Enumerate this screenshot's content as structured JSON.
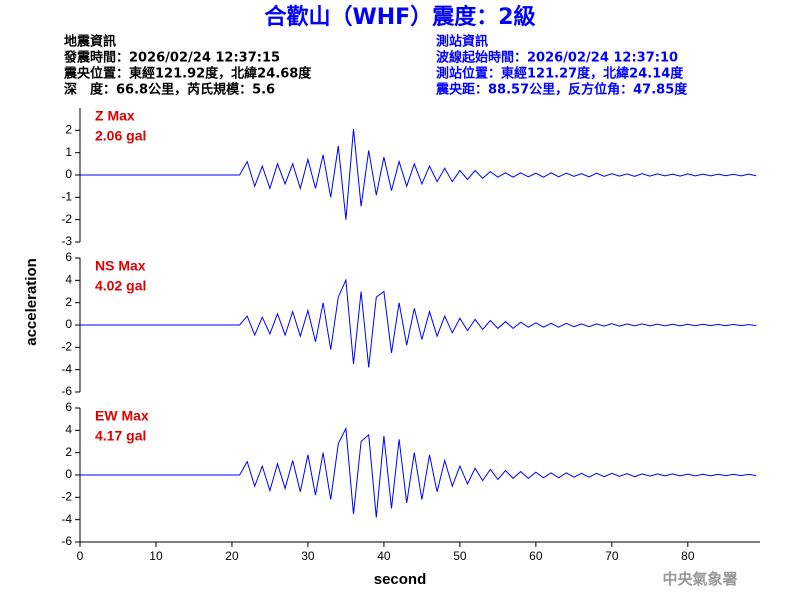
{
  "title": "合歡山（WHF）震度：2級",
  "event_info": [
    "地震資訊",
    "發震時間：2026/02/24 12:37:15",
    "震央位置：東經121.92度，北緯24.68度",
    "深　度：66.8公里，芮氏規模：5.6"
  ],
  "station_info": [
    "測站資訊",
    "波線起始時間：2026/02/24 12:37:10",
    "測站位置：東經121.27度，北緯24.14度",
    "震央距：88.57公里，反方位角：47.85度"
  ],
  "ylabel": "acceleration",
  "xlabel": "second",
  "footer": "中央氣象署",
  "chart_data": [
    {
      "type": "line",
      "color": "#0000ff",
      "annotations": [
        "Z Max",
        "2.06 gal"
      ],
      "xlim": [
        0,
        89.5
      ],
      "ylim": [
        -3,
        3
      ],
      "yticks": [
        -3,
        -2,
        -1,
        0,
        1,
        2
      ],
      "x": [
        0,
        21,
        22,
        23,
        24,
        25,
        26,
        27,
        28,
        29,
        30,
        31,
        32,
        33,
        34,
        35,
        36,
        37,
        38,
        39,
        40,
        41,
        42,
        43,
        44,
        45,
        46,
        47,
        48,
        49,
        50,
        51,
        52,
        53,
        54,
        55,
        56,
        57,
        58,
        59,
        60,
        61,
        62,
        63,
        64,
        65,
        66,
        67,
        68,
        69,
        70,
        71,
        72,
        73,
        74,
        75,
        76,
        77,
        78,
        79,
        80,
        81,
        82,
        83,
        84,
        85,
        86,
        87,
        88,
        89
      ],
      "values": [
        0,
        0,
        0.6,
        -0.5,
        0.4,
        -0.6,
        0.5,
        -0.4,
        0.5,
        -0.6,
        0.7,
        -0.6,
        0.9,
        -1.0,
        1.3,
        -2.0,
        2.06,
        -1.4,
        1.1,
        -0.9,
        0.8,
        -0.7,
        0.6,
        -0.5,
        0.5,
        -0.4,
        0.4,
        -0.3,
        0.3,
        -0.3,
        0.2,
        -0.2,
        0.2,
        -0.15,
        0.15,
        -0.1,
        0.1,
        -0.1,
        0.1,
        -0.08,
        0.08,
        -0.1,
        0.1,
        -0.08,
        0.08,
        -0.06,
        0.06,
        -0.08,
        0.08,
        -0.06,
        0.06,
        -0.05,
        0.05,
        -0.06,
        0.06,
        -0.05,
        0.05,
        -0.04,
        0.04,
        -0.05,
        0.05,
        -0.04,
        0.04,
        -0.04,
        0.04,
        -0.03,
        0.03,
        -0.04,
        0.04,
        -0.03
      ]
    },
    {
      "type": "line",
      "color": "#0000ff",
      "annotations": [
        "NS Max",
        "4.02 gal"
      ],
      "xlim": [
        0,
        89.5
      ],
      "ylim": [
        -6,
        6
      ],
      "yticks": [
        -6,
        -4,
        -2,
        0,
        2,
        4,
        6
      ],
      "x": [
        0,
        21,
        22,
        23,
        24,
        25,
        26,
        27,
        28,
        29,
        30,
        31,
        32,
        33,
        34,
        35,
        36,
        37,
        38,
        39,
        40,
        41,
        42,
        43,
        44,
        45,
        46,
        47,
        48,
        49,
        50,
        51,
        52,
        53,
        54,
        55,
        56,
        57,
        58,
        59,
        60,
        61,
        62,
        63,
        64,
        65,
        66,
        67,
        68,
        69,
        70,
        71,
        72,
        73,
        74,
        75,
        76,
        77,
        78,
        79,
        80,
        81,
        82,
        83,
        84,
        85,
        86,
        87,
        88,
        89
      ],
      "values": [
        0,
        0,
        0.8,
        -0.9,
        0.7,
        -0.8,
        1.0,
        -0.9,
        1.2,
        -1.0,
        1.3,
        -1.5,
        2.0,
        -2.2,
        2.5,
        4.02,
        -3.5,
        3.0,
        -3.8,
        2.5,
        3.0,
        -2.5,
        2.0,
        -1.8,
        1.5,
        -1.3,
        1.2,
        -1.0,
        0.8,
        -0.7,
        0.6,
        -0.5,
        0.5,
        -0.4,
        0.4,
        -0.3,
        0.3,
        -0.3,
        0.25,
        -0.2,
        0.2,
        -0.2,
        0.15,
        -0.2,
        0.15,
        -0.15,
        0.1,
        -0.15,
        0.1,
        -0.1,
        0.12,
        -0.1,
        0.1,
        -0.08,
        0.1,
        -0.08,
        0.08,
        -0.08,
        0.06,
        -0.08,
        0.06,
        -0.06,
        0.06,
        -0.05,
        0.05,
        -0.06,
        0.05,
        -0.05,
        0.04,
        -0.05
      ]
    },
    {
      "type": "line",
      "color": "#0000ff",
      "annotations": [
        "EW Max",
        "4.17 gal"
      ],
      "xlim": [
        0,
        89.5
      ],
      "ylim": [
        -6,
        6
      ],
      "yticks": [
        -6,
        -4,
        -2,
        0,
        2,
        4,
        6
      ],
      "xticks": [
        0,
        10,
        20,
        30,
        40,
        50,
        60,
        70,
        80
      ],
      "x": [
        0,
        21,
        22,
        23,
        24,
        25,
        26,
        27,
        28,
        29,
        30,
        31,
        32,
        33,
        34,
        35,
        36,
        37,
        38,
        39,
        40,
        41,
        42,
        43,
        44,
        45,
        46,
        47,
        48,
        49,
        50,
        51,
        52,
        53,
        54,
        55,
        56,
        57,
        58,
        59,
        60,
        61,
        62,
        63,
        64,
        65,
        66,
        67,
        68,
        69,
        70,
        71,
        72,
        73,
        74,
        75,
        76,
        77,
        78,
        79,
        80,
        81,
        82,
        83,
        84,
        85,
        86,
        87,
        88,
        89
      ],
      "values": [
        0,
        0,
        1.2,
        -1.0,
        0.8,
        -1.4,
        1.0,
        -1.2,
        1.3,
        -1.5,
        1.8,
        -1.8,
        2.0,
        -2.2,
        2.8,
        4.17,
        -3.5,
        3.0,
        3.6,
        -3.8,
        3.5,
        -3.0,
        3.2,
        -2.5,
        2.0,
        -2.2,
        1.8,
        -1.5,
        1.3,
        -1.0,
        0.8,
        -0.8,
        0.6,
        -0.5,
        0.5,
        -0.4,
        0.4,
        -0.3,
        0.3,
        -0.3,
        0.25,
        -0.25,
        0.2,
        -0.25,
        0.2,
        -0.2,
        0.15,
        -0.2,
        0.15,
        -0.15,
        0.15,
        -0.12,
        0.12,
        -0.15,
        0.1,
        -0.1,
        0.1,
        -0.08,
        0.1,
        -0.08,
        0.08,
        -0.08,
        0.06,
        -0.08,
        0.06,
        -0.06,
        0.06,
        -0.05,
        0.05,
        -0.05
      ]
    }
  ]
}
